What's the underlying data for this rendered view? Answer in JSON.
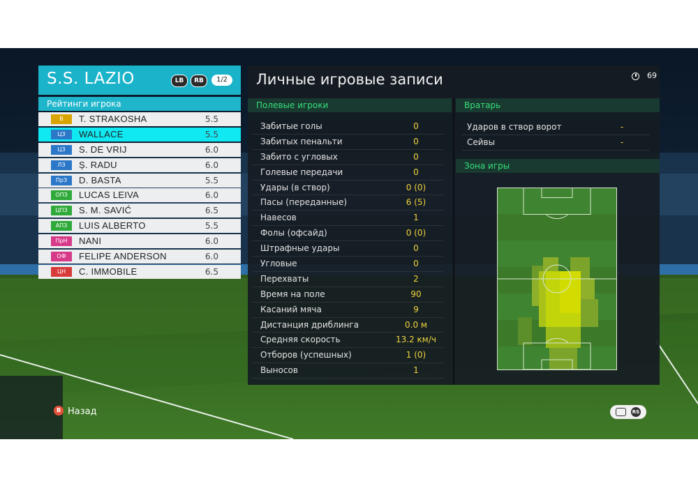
{
  "team": {
    "name": "S.S. LAZIO",
    "lb_label": "LB",
    "rb_label": "RB",
    "page_indicator": "1/2",
    "ratings_title": "Рейтинги игрока",
    "players": [
      {
        "pos": "В",
        "pos_color": "#d9a400",
        "name": "T. STRAKOSHA",
        "rating": "5.5",
        "selected": false
      },
      {
        "pos": "ЦЗ",
        "pos_color": "#2c78c8",
        "name": "WALLACE",
        "rating": "5.5",
        "selected": true
      },
      {
        "pos": "ЦЗ",
        "pos_color": "#2c78c8",
        "name": "S. DE VRIJ",
        "rating": "6.0",
        "selected": false
      },
      {
        "pos": "ЛЗ",
        "pos_color": "#2c78c8",
        "name": "Ș. RADU",
        "rating": "6.0",
        "selected": false
      },
      {
        "pos": "ПрЗ",
        "pos_color": "#2c78c8",
        "name": "D. BASTA",
        "rating": "5.5",
        "selected": false
      },
      {
        "pos": "ОПЗ",
        "pos_color": "#2faa3a",
        "name": "LUCAS LEIVA",
        "rating": "6.0",
        "selected": false
      },
      {
        "pos": "ЦПЗ",
        "pos_color": "#2faa3a",
        "name": "S. M. SAVIĆ",
        "rating": "6.5",
        "selected": false
      },
      {
        "pos": "АПЗ",
        "pos_color": "#2faa3a",
        "name": "LUIS ALBERTO",
        "rating": "5.5",
        "selected": false
      },
      {
        "pos": "ПрН",
        "pos_color": "#d83a8a",
        "name": "NANI",
        "rating": "6.0",
        "selected": false
      },
      {
        "pos": "ОФ",
        "pos_color": "#d83a8a",
        "name": "FELIPE ANDERSON",
        "rating": "6.0",
        "selected": false
      },
      {
        "pos": "ЦН",
        "pos_color": "#d83a3a",
        "name": "C. IMMOBILE",
        "rating": "6.5",
        "selected": false
      }
    ]
  },
  "records": {
    "title": "Личные игровые записи",
    "timer": "69",
    "field_players_title": "Полевые игроки",
    "stats": [
      {
        "label": "Забитые голы",
        "value": "0"
      },
      {
        "label": "Забитых пенальти",
        "value": "0"
      },
      {
        "label": "Забито с угловых",
        "value": "0"
      },
      {
        "label": "Голевые передачи",
        "value": "0"
      },
      {
        "label": "Удары (в створ)",
        "value": "0 (0)"
      },
      {
        "label": "Пасы (переданные)",
        "value": "6 (5)"
      },
      {
        "label": "Навесов",
        "value": "1"
      },
      {
        "label": "Фолы (офсайд)",
        "value": "0 (0)"
      },
      {
        "label": "Штрафные удары",
        "value": "0"
      },
      {
        "label": "Угловые",
        "value": "0"
      },
      {
        "label": "Перехваты",
        "value": "2"
      },
      {
        "label": "Время на поле",
        "value": "90"
      },
      {
        "label": "Касаний мяча",
        "value": "9"
      },
      {
        "label": "Дистанция дриблинга",
        "value": "0.0 м"
      },
      {
        "label": "Средняя скорость",
        "value": "13.2 км/ч"
      },
      {
        "label": "Отборов (успешных)",
        "value": "1 (0)"
      },
      {
        "label": "Выносов",
        "value": "1"
      }
    ],
    "goalkeeper_title": "Вратарь",
    "goalkeeper_stats": [
      {
        "label": "Ударов в створ ворот",
        "value": "-"
      },
      {
        "label": "Сейвы",
        "value": "-"
      }
    ],
    "zone_title": "Зона игры"
  },
  "footer": {
    "back_button_glyph": "B",
    "back_label": "Назад",
    "rs_glyph": "RS"
  },
  "colors": {
    "accent": "#1ab3c9",
    "selected_row": "#10e8f2",
    "section_text": "#35e07a",
    "value_text": "#f0d33d",
    "heat": "#c8d800"
  }
}
